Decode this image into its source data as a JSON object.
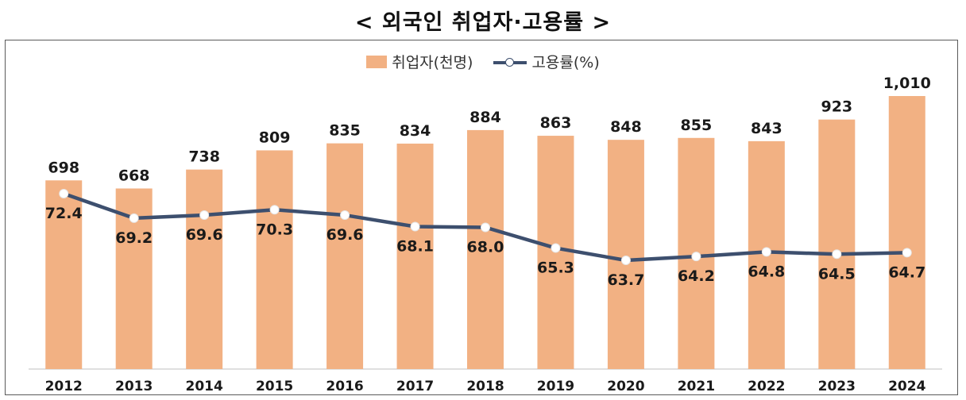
{
  "chart_data": {
    "type": "bar",
    "title": "< 외국인 취업자·고용률 >",
    "categories": [
      "2012",
      "2013",
      "2014",
      "2015",
      "2016",
      "2017",
      "2018",
      "2019",
      "2020",
      "2021",
      "2022",
      "2023",
      "2024"
    ],
    "bar_labels": [
      "698",
      "668",
      "738",
      "809",
      "835",
      "834",
      "884",
      "863",
      "848",
      "855",
      "843",
      "923",
      "1,010"
    ],
    "line_labels": [
      "72.4",
      "69.2",
      "69.6",
      "70.3",
      "69.6",
      "68.1",
      "68.0",
      "65.3",
      "63.7",
      "64.2",
      "64.8",
      "64.5",
      "64.7"
    ],
    "series": [
      {
        "name": "취업자(천명)",
        "type": "bar",
        "color": "#f2b183",
        "values": [
          698,
          668,
          738,
          809,
          835,
          834,
          884,
          863,
          848,
          855,
          843,
          923,
          1010
        ]
      },
      {
        "name": "고용률(%)",
        "type": "line",
        "color": "#3d4f6e",
        "values": [
          72.4,
          69.2,
          69.6,
          70.3,
          69.6,
          68.1,
          68.0,
          65.3,
          63.7,
          64.2,
          64.8,
          64.5,
          64.7
        ]
      }
    ],
    "legend": "top-center",
    "grid": false
  }
}
